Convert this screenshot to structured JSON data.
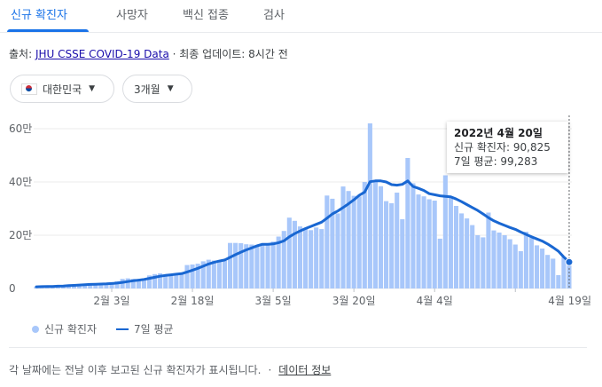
{
  "tabs": [
    "신규 확진자",
    "사망자",
    "백신 접종",
    "검사"
  ],
  "source": {
    "prefix": "출처:",
    "link": "JHU CSSE COVID-19 Data",
    "suffix": "· 최종 업데이트: 8시간 전"
  },
  "filters": {
    "country": "대한민국",
    "country_flag_icon": "korea-flag-icon",
    "period": "3개월"
  },
  "tooltip": {
    "date": "2022년 4월 20일",
    "cases_label": "신규 확진자: 90,825",
    "avg_label": "7일 평균: 99,283"
  },
  "legend": {
    "bars": "신규 확진자",
    "line": "7일 평균"
  },
  "footer": {
    "note": "각 날짜에는 전날 이후 보고된 신규 확진자가 표시됩니다.",
    "sep": "·",
    "link": "데이터 정보"
  },
  "colors": {
    "bar": "#a8c7fa",
    "line": "#1967d2",
    "accent": "#1a73e8"
  },
  "chart_data": {
    "type": "bar",
    "x_start": "2022-01-20",
    "x_end": "2022-04-20",
    "ylim": [
      0,
      650000
    ],
    "yticks": [
      0,
      200000,
      400000,
      600000
    ],
    "ytick_labels": [
      "0",
      "20만",
      "40만",
      "60만"
    ],
    "xticks": [
      "2월 3일",
      "2월 18일",
      "3월 5일",
      "3월 20일",
      "4월 4일",
      "4월 19일"
    ],
    "grid": true,
    "legend_position": "bottom-left",
    "series": [
      {
        "name": "신규 확진자",
        "type": "bar",
        "values": [
          6600,
          6800,
          7000,
          7600,
          8600,
          10000,
          11500,
          13000,
          14500,
          16000,
          17500,
          18500,
          17000,
          20000,
          22000,
          27000,
          36000,
          38000,
          36000,
          35000,
          38000,
          49000,
          54000,
          57000,
          54000,
          53000,
          55000,
          57000,
          88000,
          90000,
          93000,
          102000,
          108000,
          105000,
          100000,
          104000,
          171000,
          171000,
          170000,
          166000,
          165000,
          164000,
          163000,
          163000,
          176000,
          195000,
          216000,
          266000,
          254000,
          233000,
          225000,
          219000,
          229000,
          223000,
          349000,
          337000,
          282000,
          383000,
          366000,
          348000,
          346000,
          400000,
          620000,
          407000,
          384000,
          328000,
          320000,
          360000,
          260000,
          490000,
          395000,
          353000,
          346000,
          335000,
          330000,
          187000,
          425000,
          346000,
          310000,
          282000,
          263000,
          238000,
          200000,
          192000,
          285000,
          218000,
          210000,
          200000,
          185000,
          165000,
          140000,
          213000,
          196000,
          162000,
          150000,
          126000,
          112000,
          50000,
          118000,
          91000
        ]
      },
      {
        "name": "7일 평균",
        "type": "line",
        "values": [
          6500,
          6900,
          7300,
          7800,
          8500,
          9500,
          10600,
          11800,
          13000,
          14200,
          15300,
          16100,
          16700,
          17500,
          18600,
          20200,
          23000,
          26000,
          29000,
          31500,
          34000,
          38000,
          42000,
          46000,
          49000,
          51500,
          53500,
          55500,
          62000,
          68500,
          75500,
          83500,
          92000,
          98000,
          103000,
          107000,
          117000,
          127000,
          136500,
          145000,
          152500,
          160000,
          166000,
          165500,
          167500,
          172000,
          179000,
          194000,
          206000,
          216000,
          225000,
          233000,
          241000,
          249000,
          264000,
          280000,
          291000,
          304000,
          318000,
          333000,
          350000,
          362000,
          401000,
          404000,
          404000,
          400000,
          390000,
          388000,
          391000,
          404000,
          383000,
          376000,
          368000,
          356000,
          352000,
          348000,
          346000,
          344000,
          336000,
          326000,
          315000,
          304000,
          293000,
          280000,
          266000,
          254000,
          245000,
          237000,
          229000,
          222000,
          212000,
          203000,
          194000,
          186000,
          178000,
          167000,
          154000,
          140000,
          118000,
          99283
        ]
      }
    ]
  }
}
